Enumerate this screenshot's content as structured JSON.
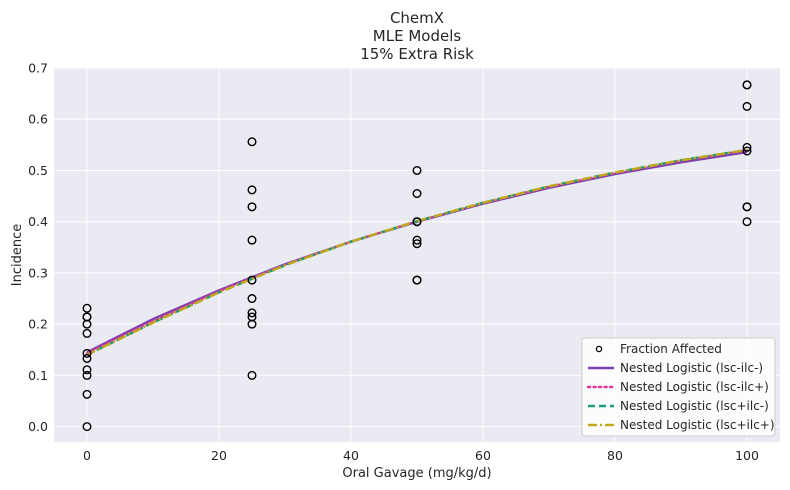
{
  "chart_data": {
    "type": "scatter",
    "title_lines": [
      "ChemX",
      "MLE Models",
      "15% Extra Risk"
    ],
    "xlabel": "Oral Gavage (mg/kg/d)",
    "ylabel": "Incidence",
    "xlim": [
      -5,
      105
    ],
    "ylim": [
      -0.03,
      0.7
    ],
    "xticks": [
      0,
      20,
      40,
      60,
      80,
      100
    ],
    "yticks": [
      0.0,
      0.1,
      0.2,
      0.3,
      0.4,
      0.5,
      0.6,
      0.7
    ],
    "xtick_labels": [
      "0",
      "20",
      "40",
      "60",
      "80",
      "100"
    ],
    "ytick_labels": [
      "0.0",
      "0.1",
      "0.2",
      "0.3",
      "0.4",
      "0.5",
      "0.6",
      "0.7"
    ],
    "grid": true,
    "legend_position": "lower-right",
    "points": {
      "name": "Fraction Affected",
      "x": [
        0,
        0,
        0,
        0,
        0,
        0,
        0,
        0,
        0,
        0,
        0,
        25,
        25,
        25,
        25,
        25,
        25,
        25,
        25,
        25,
        25,
        50,
        50,
        50,
        50,
        50,
        50,
        50,
        50,
        100,
        100,
        100,
        100,
        100,
        100,
        100,
        100
      ],
      "y": [
        0.0,
        0.063,
        0.1,
        0.111,
        0.133,
        0.143,
        0.182,
        0.2,
        0.214,
        0.214,
        0.231,
        0.1,
        0.2,
        0.214,
        0.222,
        0.25,
        0.286,
        0.364,
        0.429,
        0.462,
        0.556,
        0.286,
        0.286,
        0.357,
        0.364,
        0.4,
        0.4,
        0.455,
        0.5,
        0.4,
        0.429,
        0.429,
        0.538,
        0.545,
        0.625,
        0.667,
        0.667
      ]
    },
    "series": [
      {
        "name": "Nested Logistic (lsc-ilc-)",
        "color": "#7b3fb0",
        "dash": "solid",
        "x": [
          0,
          10,
          20,
          30,
          40,
          50,
          60,
          70,
          80,
          90,
          100
        ],
        "y": [
          0.145,
          0.21,
          0.266,
          0.317,
          0.361,
          0.4,
          0.435,
          0.466,
          0.493,
          0.516,
          0.536
        ]
      },
      {
        "name": "Nested Logistic (lsc-ilc+)",
        "color": "#e0369b",
        "dash": "dotted",
        "x": [
          0,
          10,
          20,
          30,
          40,
          50,
          60,
          70,
          80,
          90,
          100
        ],
        "y": [
          0.143,
          0.206,
          0.264,
          0.316,
          0.361,
          0.401,
          0.436,
          0.468,
          0.495,
          0.519,
          0.539
        ]
      },
      {
        "name": "Nested Logistic (lsc+ilc-)",
        "color": "#1a9c7e",
        "dash": "dashed",
        "x": [
          0,
          10,
          20,
          30,
          40,
          50,
          60,
          70,
          80,
          90,
          100
        ],
        "y": [
          0.14,
          0.203,
          0.262,
          0.315,
          0.361,
          0.401,
          0.437,
          0.469,
          0.496,
          0.52,
          0.54
        ]
      },
      {
        "name": "Nested Logistic (lsc+ilc+)",
        "color": "#c4a916",
        "dash": "dashdot",
        "x": [
          0,
          10,
          20,
          30,
          40,
          50,
          60,
          70,
          80,
          90,
          100
        ],
        "y": [
          0.14,
          0.203,
          0.262,
          0.315,
          0.361,
          0.401,
          0.437,
          0.469,
          0.496,
          0.52,
          0.54
        ]
      }
    ]
  }
}
